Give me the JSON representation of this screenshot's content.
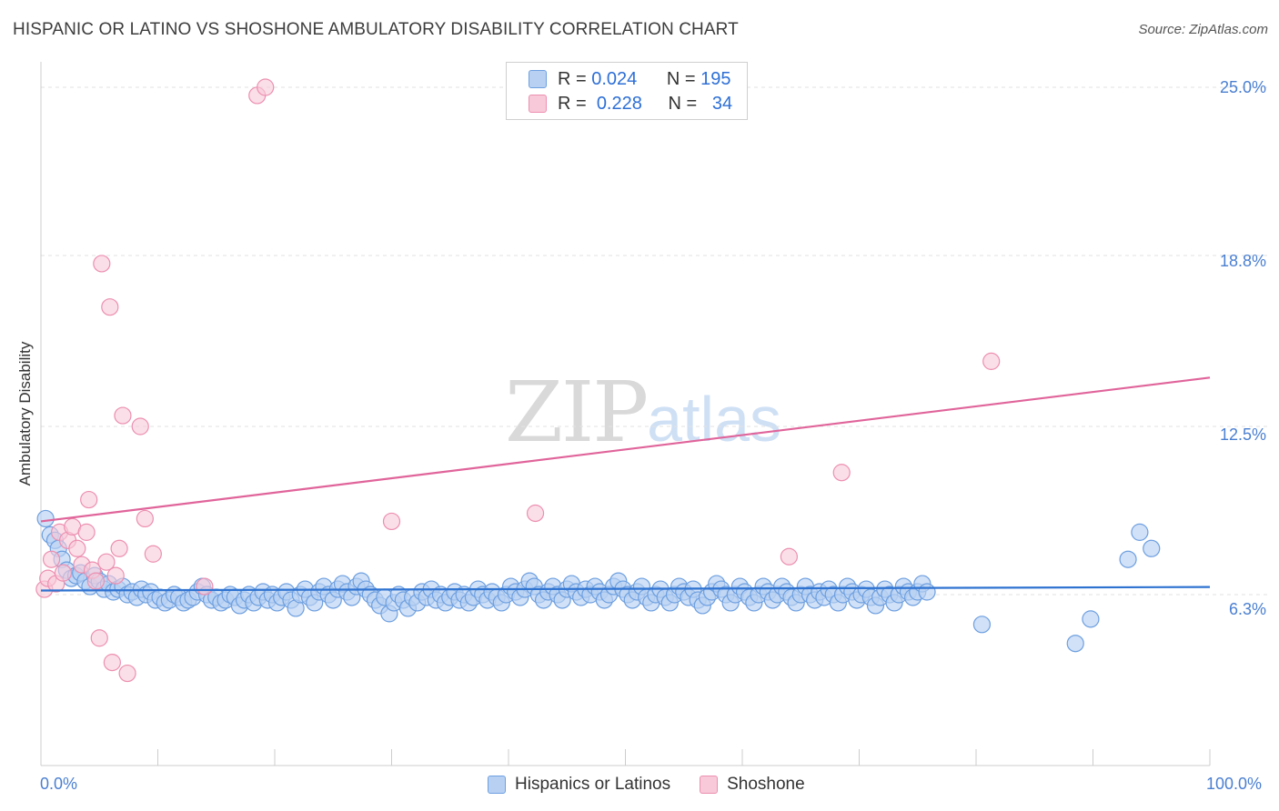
{
  "header": {
    "title": "HISPANIC OR LATINO VS SHOSHONE AMBULATORY DISABILITY CORRELATION CHART",
    "source": "Source: ZipAtlas.com"
  },
  "watermark": {
    "zip": "ZIP",
    "atlas": "atlas"
  },
  "legend": {
    "rows": [
      {
        "r_label": "R =",
        "r_value": "0.024",
        "n_label": "N =",
        "n_value": "195"
      },
      {
        "r_label": "R =",
        "r_value": "0.228",
        "n_label": "N =",
        "n_value": "34"
      }
    ]
  },
  "bottom_legend": {
    "series": [
      "Hispanics or Latinos",
      "Shoshone"
    ]
  },
  "colors": {
    "blue_fill": "#b8d1f3",
    "blue_stroke": "#6d9fe0",
    "blue_line": "#2f73d1",
    "pink_fill": "#f8c9d8",
    "pink_stroke": "#ec8fb0",
    "pink_line": "#e0649a",
    "tick_text": "#4a7fd1",
    "grid": "#e2e2e2"
  },
  "chart_data": {
    "type": "scatter",
    "title": "HISPANIC OR LATINO VS SHOSHONE AMBULATORY DISABILITY CORRELATION CHART",
    "xlabel": "",
    "ylabel": "Ambulatory Disability",
    "xlim": [
      0,
      100
    ],
    "ylim": [
      0,
      26.0
    ],
    "x_tick_labels": [
      "0.0%",
      "100.0%"
    ],
    "y_ticks": [
      6.3,
      12.5,
      18.8,
      25.0
    ],
    "y_tick_labels": [
      "6.3%",
      "12.5%",
      "18.8%",
      "25.0%"
    ],
    "grid": true,
    "legend_position": "top-center",
    "series": [
      {
        "name": "Hispanics or Latinos",
        "R": 0.024,
        "N": 195,
        "trend": {
          "x": [
            0,
            100
          ],
          "y": [
            6.45,
            6.58
          ]
        },
        "points": [
          [
            0.4,
            9.1
          ],
          [
            0.8,
            8.5
          ],
          [
            1.2,
            8.3
          ],
          [
            1.5,
            8.0
          ],
          [
            1.8,
            7.6
          ],
          [
            2.2,
            7.2
          ],
          [
            2.6,
            6.9
          ],
          [
            3.0,
            7.0
          ],
          [
            3.4,
            7.1
          ],
          [
            3.8,
            6.8
          ],
          [
            4.2,
            6.6
          ],
          [
            4.6,
            7.0
          ],
          [
            5.0,
            6.8
          ],
          [
            5.4,
            6.5
          ],
          [
            5.8,
            6.7
          ],
          [
            6.2,
            6.4
          ],
          [
            6.6,
            6.5
          ],
          [
            7.0,
            6.6
          ],
          [
            7.4,
            6.3
          ],
          [
            7.8,
            6.4
          ],
          [
            8.2,
            6.2
          ],
          [
            8.6,
            6.5
          ],
          [
            9.0,
            6.3
          ],
          [
            9.4,
            6.4
          ],
          [
            9.8,
            6.1
          ],
          [
            10.2,
            6.2
          ],
          [
            10.6,
            6.0
          ],
          [
            11.0,
            6.1
          ],
          [
            11.4,
            6.3
          ],
          [
            11.8,
            6.2
          ],
          [
            12.2,
            6.0
          ],
          [
            12.6,
            6.1
          ],
          [
            13.0,
            6.2
          ],
          [
            13.4,
            6.4
          ],
          [
            13.8,
            6.6
          ],
          [
            14.2,
            6.3
          ],
          [
            14.6,
            6.1
          ],
          [
            15.0,
            6.2
          ],
          [
            15.4,
            6.0
          ],
          [
            15.8,
            6.1
          ],
          [
            16.2,
            6.3
          ],
          [
            16.6,
            6.2
          ],
          [
            17.0,
            5.9
          ],
          [
            17.4,
            6.1
          ],
          [
            17.8,
            6.3
          ],
          [
            18.2,
            6.0
          ],
          [
            18.6,
            6.2
          ],
          [
            19.0,
            6.4
          ],
          [
            19.4,
            6.1
          ],
          [
            19.8,
            6.3
          ],
          [
            20.2,
            6.0
          ],
          [
            20.6,
            6.2
          ],
          [
            21.0,
            6.4
          ],
          [
            21.4,
            6.1
          ],
          [
            21.8,
            5.8
          ],
          [
            22.2,
            6.3
          ],
          [
            22.6,
            6.5
          ],
          [
            23.0,
            6.2
          ],
          [
            23.4,
            6.0
          ],
          [
            23.8,
            6.4
          ],
          [
            24.2,
            6.6
          ],
          [
            24.6,
            6.3
          ],
          [
            25.0,
            6.1
          ],
          [
            25.4,
            6.5
          ],
          [
            25.8,
            6.7
          ],
          [
            26.2,
            6.4
          ],
          [
            26.6,
            6.2
          ],
          [
            27.0,
            6.6
          ],
          [
            27.4,
            6.8
          ],
          [
            27.8,
            6.5
          ],
          [
            28.2,
            6.3
          ],
          [
            28.6,
            6.1
          ],
          [
            29.0,
            5.9
          ],
          [
            29.4,
            6.2
          ],
          [
            29.8,
            5.6
          ],
          [
            30.2,
            6.0
          ],
          [
            30.6,
            6.3
          ],
          [
            31.0,
            6.1
          ],
          [
            31.4,
            5.8
          ],
          [
            31.8,
            6.2
          ],
          [
            32.2,
            6.0
          ],
          [
            32.6,
            6.4
          ],
          [
            33.0,
            6.2
          ],
          [
            33.4,
            6.5
          ],
          [
            33.8,
            6.1
          ],
          [
            34.2,
            6.3
          ],
          [
            34.6,
            6.0
          ],
          [
            35.0,
            6.2
          ],
          [
            35.4,
            6.4
          ],
          [
            35.8,
            6.1
          ],
          [
            36.2,
            6.3
          ],
          [
            36.6,
            6.0
          ],
          [
            37.0,
            6.2
          ],
          [
            37.4,
            6.5
          ],
          [
            37.8,
            6.3
          ],
          [
            38.2,
            6.1
          ],
          [
            38.6,
            6.4
          ],
          [
            39.0,
            6.2
          ],
          [
            39.4,
            6.0
          ],
          [
            39.8,
            6.3
          ],
          [
            40.2,
            6.6
          ],
          [
            40.6,
            6.4
          ],
          [
            41.0,
            6.2
          ],
          [
            41.4,
            6.5
          ],
          [
            41.8,
            6.8
          ],
          [
            42.2,
            6.6
          ],
          [
            42.6,
            6.3
          ],
          [
            43.0,
            6.1
          ],
          [
            43.4,
            6.4
          ],
          [
            43.8,
            6.6
          ],
          [
            44.2,
            6.3
          ],
          [
            44.6,
            6.1
          ],
          [
            45.0,
            6.5
          ],
          [
            45.4,
            6.7
          ],
          [
            45.8,
            6.4
          ],
          [
            46.2,
            6.2
          ],
          [
            46.6,
            6.5
          ],
          [
            47.0,
            6.3
          ],
          [
            47.4,
            6.6
          ],
          [
            47.8,
            6.4
          ],
          [
            48.2,
            6.1
          ],
          [
            48.6,
            6.3
          ],
          [
            49.0,
            6.6
          ],
          [
            49.4,
            6.8
          ],
          [
            49.8,
            6.5
          ],
          [
            50.2,
            6.3
          ],
          [
            50.6,
            6.1
          ],
          [
            51.0,
            6.4
          ],
          [
            51.4,
            6.6
          ],
          [
            51.8,
            6.2
          ],
          [
            52.2,
            6.0
          ],
          [
            52.6,
            6.3
          ],
          [
            53.0,
            6.5
          ],
          [
            53.4,
            6.2
          ],
          [
            53.8,
            6.0
          ],
          [
            54.2,
            6.3
          ],
          [
            54.6,
            6.6
          ],
          [
            55.0,
            6.4
          ],
          [
            55.4,
            6.2
          ],
          [
            55.8,
            6.5
          ],
          [
            56.2,
            6.1
          ],
          [
            56.6,
            5.9
          ],
          [
            57.0,
            6.2
          ],
          [
            57.4,
            6.4
          ],
          [
            57.8,
            6.7
          ],
          [
            58.2,
            6.5
          ],
          [
            58.6,
            6.3
          ],
          [
            59.0,
            6.0
          ],
          [
            59.4,
            6.3
          ],
          [
            59.8,
            6.6
          ],
          [
            60.2,
            6.4
          ],
          [
            60.6,
            6.2
          ],
          [
            61.0,
            6.0
          ],
          [
            61.4,
            6.3
          ],
          [
            61.8,
            6.6
          ],
          [
            62.2,
            6.4
          ],
          [
            62.6,
            6.1
          ],
          [
            63.0,
            6.3
          ],
          [
            63.4,
            6.6
          ],
          [
            63.8,
            6.4
          ],
          [
            64.2,
            6.2
          ],
          [
            64.6,
            6.0
          ],
          [
            65.0,
            6.3
          ],
          [
            65.4,
            6.6
          ],
          [
            65.8,
            6.3
          ],
          [
            66.2,
            6.1
          ],
          [
            66.6,
            6.4
          ],
          [
            67.0,
            6.2
          ],
          [
            67.4,
            6.5
          ],
          [
            67.8,
            6.3
          ],
          [
            68.2,
            6.0
          ],
          [
            68.6,
            6.3
          ],
          [
            69.0,
            6.6
          ],
          [
            69.4,
            6.4
          ],
          [
            69.8,
            6.1
          ],
          [
            70.2,
            6.3
          ],
          [
            70.6,
            6.5
          ],
          [
            71.0,
            6.2
          ],
          [
            71.4,
            5.9
          ],
          [
            71.8,
            6.2
          ],
          [
            72.2,
            6.5
          ],
          [
            72.6,
            6.3
          ],
          [
            73.0,
            6.0
          ],
          [
            73.4,
            6.3
          ],
          [
            73.8,
            6.6
          ],
          [
            74.2,
            6.4
          ],
          [
            74.6,
            6.2
          ],
          [
            75.0,
            6.4
          ],
          [
            75.4,
            6.7
          ],
          [
            75.8,
            6.4
          ],
          [
            80.5,
            5.2
          ],
          [
            88.5,
            4.5
          ],
          [
            89.8,
            5.4
          ],
          [
            93.0,
            7.6
          ],
          [
            94.0,
            8.6
          ],
          [
            95.0,
            8.0
          ]
        ]
      },
      {
        "name": "Shoshone",
        "R": 0.228,
        "N": 34,
        "trend": {
          "x": [
            0,
            100
          ],
          "y": [
            9.0,
            14.3
          ]
        },
        "points": [
          [
            0.3,
            6.5
          ],
          [
            0.6,
            6.9
          ],
          [
            0.9,
            7.6
          ],
          [
            1.3,
            6.7
          ],
          [
            1.6,
            8.6
          ],
          [
            1.9,
            7.1
          ],
          [
            2.3,
            8.3
          ],
          [
            2.7,
            8.8
          ],
          [
            3.1,
            8.0
          ],
          [
            3.5,
            7.4
          ],
          [
            3.9,
            8.6
          ],
          [
            4.1,
            9.8
          ],
          [
            4.4,
            7.2
          ],
          [
            4.7,
            6.8
          ],
          [
            5.0,
            4.7
          ],
          [
            5.2,
            18.5
          ],
          [
            5.6,
            7.5
          ],
          [
            5.9,
            16.9
          ],
          [
            6.1,
            3.8
          ],
          [
            6.4,
            7.0
          ],
          [
            6.7,
            8.0
          ],
          [
            7.0,
            12.9
          ],
          [
            7.4,
            3.4
          ],
          [
            8.5,
            12.5
          ],
          [
            8.9,
            9.1
          ],
          [
            9.6,
            7.8
          ],
          [
            14.0,
            6.6
          ],
          [
            18.5,
            24.7
          ],
          [
            19.2,
            25.0
          ],
          [
            30.0,
            9.0
          ],
          [
            42.3,
            9.3
          ],
          [
            64.0,
            7.7
          ],
          [
            68.5,
            10.8
          ],
          [
            81.3,
            14.9
          ]
        ]
      }
    ]
  }
}
